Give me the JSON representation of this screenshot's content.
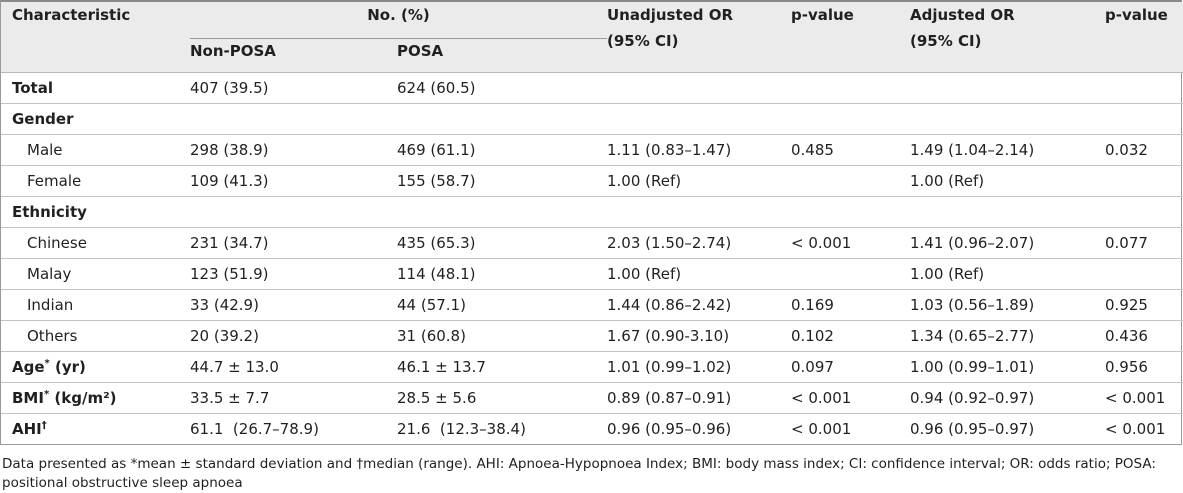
{
  "header": {
    "characteristic": "Characteristic",
    "no_pct": "No. (%)",
    "non_posa": "Non-POSA",
    "posa": "POSA",
    "unadj_or_line1": "Unadjusted OR",
    "unadj_or_line2": "(95% CI)",
    "p_value_1": "p-value",
    "adj_or_line1": "Adjusted OR",
    "adj_or_line2": "(95% CI)",
    "p_value_2": "p-value"
  },
  "rows": [
    {
      "label": "Total",
      "non_posa": "407 (39.5)",
      "posa": "624 (60.5)",
      "unadj": "",
      "p1": "",
      "adj": "",
      "p2": ""
    },
    {
      "label": "Gender",
      "non_posa": "",
      "posa": "",
      "unadj": "",
      "p1": "",
      "adj": "",
      "p2": ""
    },
    {
      "label": "Male",
      "non_posa": "298 (38.9)",
      "posa": "469 (61.1)",
      "unadj": "1.11 (0.83–1.47)",
      "p1": "0.485",
      "adj": "1.49 (1.04–2.14)",
      "p2": "0.032"
    },
    {
      "label": "Female",
      "non_posa": "109 (41.3)",
      "posa": "155 (58.7)",
      "unadj": "1.00 (Ref)",
      "p1": "",
      "adj": "1.00 (Ref)",
      "p2": ""
    },
    {
      "label": "Ethnicity",
      "non_posa": "",
      "posa": "",
      "unadj": "",
      "p1": "",
      "adj": "",
      "p2": ""
    },
    {
      "label": "Chinese",
      "non_posa": "231 (34.7)",
      "posa": "435 (65.3)",
      "unadj": "2.03 (1.50–2.74)",
      "p1": "< 0.001",
      "adj": "1.41 (0.96–2.07)",
      "p2": "0.077"
    },
    {
      "label": "Malay",
      "non_posa": "123 (51.9)",
      "posa": "114 (48.1)",
      "unadj": "1.00 (Ref)",
      "p1": "",
      "adj": "1.00 (Ref)",
      "p2": ""
    },
    {
      "label": "Indian",
      "non_posa": "33 (42.9)",
      "posa": "44 (57.1)",
      "unadj": "1.44 (0.86–2.42)",
      "p1": "0.169",
      "adj": "1.03 (0.56–1.89)",
      "p2": "0.925"
    },
    {
      "label": "Others",
      "non_posa": "20 (39.2)",
      "posa": "31 (60.8)",
      "unadj": "1.67 (0.90-3.10)",
      "p1": "0.102",
      "adj": "1.34 (0.65–2.77)",
      "p2": "0.436"
    },
    {
      "label": "Age",
      "label_sup": "*",
      "label_suffix": " (yr)",
      "non_posa": "44.7 ± 13.0",
      "posa": "46.1 ± 13.7",
      "unadj": "1.01 (0.99–1.02)",
      "p1": "0.097",
      "adj": "1.00 (0.99–1.01)",
      "p2": "0.956"
    },
    {
      "label": "BMI",
      "label_sup": "*",
      "label_suffix": " (kg/m²)",
      "non_posa": "33.5 ± 7.7",
      "posa": "28.5 ± 5.6",
      "unadj": "0.89 (0.87–0.91)",
      "p1": "< 0.001",
      "adj": "0.94 (0.92–0.97)",
      "p2": "< 0.001"
    },
    {
      "label": "AHI",
      "label_sup": "†",
      "label_suffix": "",
      "non_posa": "61.1  (26.7–78.9)",
      "posa": "21.6  (12.3–38.4)",
      "unadj": "0.96 (0.95–0.96)",
      "p1": "< 0.001",
      "adj": "0.96 (0.95–0.97)",
      "p2": "< 0.001"
    }
  ],
  "footnote": "Data presented as *mean ± standard deviation and †median (range). AHI: Apnoea-Hypopnoea Index; BMI: body mass index; CI: confidence interval; OR: odds ratio; POSA: positional obstructive sleep apnoea"
}
